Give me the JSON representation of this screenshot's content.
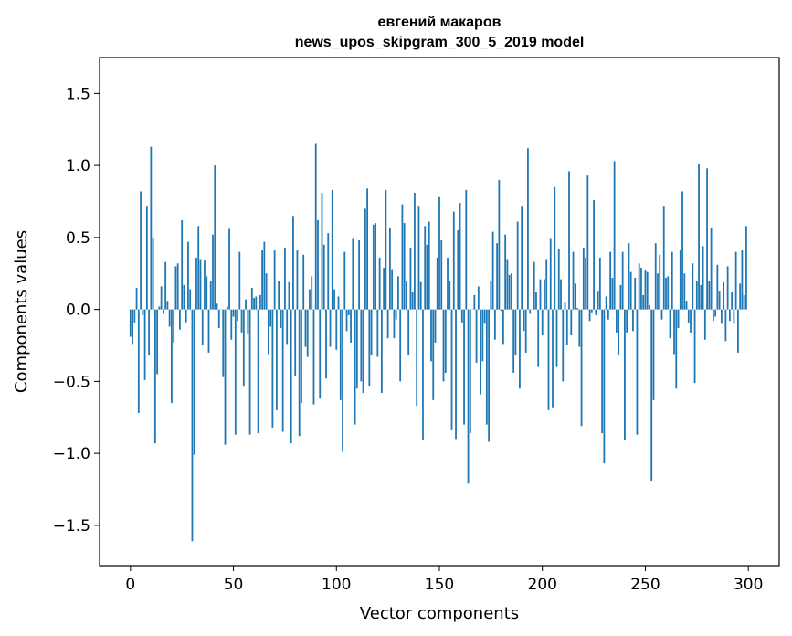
{
  "chart_data": {
    "type": "bar",
    "title_line1": "евгений макаров",
    "title_line2": "news_upos_skipgram_300_5_2019 model",
    "xlabel": "Vector components",
    "ylabel": "Components values",
    "xlim": [
      -15,
      315
    ],
    "ylim": [
      -1.78,
      1.75
    ],
    "xticks": [
      0,
      50,
      100,
      150,
      200,
      250,
      300
    ],
    "xtick_labels": [
      "0",
      "50",
      "100",
      "150",
      "200",
      "250",
      "300"
    ],
    "yticks": [
      -1.5,
      -1.0,
      -0.5,
      0.0,
      0.5,
      1.0,
      1.5
    ],
    "ytick_labels": [
      "−1.5",
      "−1.0",
      "−0.5",
      "0.0",
      "0.5",
      "1.0",
      "1.5"
    ],
    "bar_color": "#1f77b4",
    "grid": false,
    "values": [
      -0.19,
      -0.24,
      -0.09,
      0.15,
      -0.72,
      0.82,
      -0.04,
      -0.49,
      0.72,
      -0.32,
      1.13,
      0.5,
      -0.93,
      -0.45,
      0.02,
      0.16,
      -0.03,
      0.33,
      0.06,
      -0.12,
      -0.65,
      -0.23,
      0.3,
      0.32,
      -0.14,
      0.62,
      0.17,
      -0.09,
      0.47,
      0.14,
      -1.61,
      -1.01,
      0.36,
      0.58,
      0.35,
      -0.25,
      0.34,
      0.23,
      -0.3,
      0.2,
      0.52,
      1.0,
      0.04,
      -0.13,
      0.0,
      -0.47,
      -0.94,
      0.02,
      0.56,
      -0.21,
      -0.05,
      -0.87,
      -0.08,
      0.4,
      -0.16,
      -0.53,
      0.07,
      -0.17,
      -0.87,
      0.15,
      0.08,
      0.09,
      -0.86,
      0.1,
      0.41,
      0.47,
      0.25,
      -0.31,
      -0.12,
      -0.82,
      0.41,
      -0.7,
      0.2,
      -0.13,
      -0.85,
      0.43,
      -0.24,
      0.19,
      -0.93,
      0.65,
      -0.46,
      0.41,
      -0.88,
      -0.65,
      0.38,
      -0.26,
      -0.33,
      0.14,
      0.23,
      -0.66,
      1.15,
      0.62,
      -0.62,
      0.81,
      0.45,
      -0.48,
      0.53,
      -0.26,
      0.83,
      0.14,
      -0.28,
      0.09,
      -0.63,
      -0.99,
      0.4,
      -0.15,
      -0.04,
      -0.23,
      0.49,
      -0.8,
      -0.55,
      0.48,
      -0.5,
      -0.58,
      0.7,
      0.84,
      -0.53,
      -0.32,
      0.59,
      0.6,
      -0.33,
      0.36,
      -0.58,
      0.29,
      0.83,
      -0.2,
      0.57,
      0.28,
      -0.2,
      -0.07,
      0.23,
      -0.5,
      0.73,
      0.6,
      0.2,
      -0.32,
      0.43,
      0.12,
      0.81,
      -0.67,
      0.72,
      0.19,
      -0.91,
      0.58,
      0.45,
      0.61,
      -0.36,
      -0.63,
      -0.23,
      0.36,
      0.78,
      0.48,
      -0.5,
      -0.44,
      0.36,
      0.2,
      -0.84,
      0.68,
      -0.9,
      0.55,
      0.74,
      -0.09,
      -0.8,
      0.83,
      -1.21,
      -0.86,
      0.0,
      0.1,
      -0.37,
      0.16,
      -0.59,
      -0.36,
      -0.1,
      -0.8,
      -0.92,
      0.2,
      0.54,
      -0.21,
      0.46,
      0.9,
      -0.01,
      -0.24,
      0.52,
      0.35,
      0.24,
      0.25,
      -0.44,
      -0.32,
      0.61,
      -0.55,
      0.72,
      -0.15,
      -0.3,
      1.12,
      -0.03,
      0.0,
      0.33,
      0.12,
      -0.4,
      0.21,
      -0.18,
      0.21,
      0.35,
      -0.7,
      0.49,
      -0.68,
      0.85,
      -0.4,
      0.42,
      0.21,
      -0.5,
      0.05,
      -0.25,
      0.96,
      -0.18,
      0.4,
      0.18,
      0.01,
      -0.26,
      -0.81,
      0.43,
      0.36,
      0.93,
      -0.08,
      -0.02,
      0.76,
      -0.04,
      0.13,
      0.36,
      -0.86,
      -1.07,
      0.09,
      -0.07,
      0.4,
      0.22,
      1.03,
      -0.16,
      -0.32,
      0.17,
      0.4,
      -0.91,
      -0.16,
      0.46,
      0.26,
      -0.15,
      0.22,
      -0.87,
      0.32,
      0.29,
      0.1,
      0.27,
      0.26,
      0.03,
      -1.19,
      -0.63,
      0.46,
      0.25,
      0.38,
      -0.07,
      0.72,
      0.22,
      0.23,
      -0.2,
      0.4,
      -0.31,
      -0.55,
      -0.13,
      0.41,
      0.82,
      0.25,
      0.06,
      -0.09,
      -0.16,
      0.32,
      -0.51,
      0.2,
      1.01,
      0.17,
      0.44,
      -0.21,
      0.98,
      0.2,
      0.57,
      -0.08,
      -0.05,
      0.31,
      0.13,
      -0.1,
      0.19,
      -0.22,
      0.3,
      -0.08,
      0.12,
      -0.1,
      0.4,
      -0.3,
      0.18,
      0.41,
      0.1,
      0.58
    ]
  }
}
